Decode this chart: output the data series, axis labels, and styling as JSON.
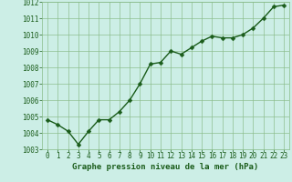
{
  "x": [
    0,
    1,
    2,
    3,
    4,
    5,
    6,
    7,
    8,
    9,
    10,
    11,
    12,
    13,
    14,
    15,
    16,
    17,
    18,
    19,
    20,
    21,
    22,
    23
  ],
  "y": [
    1004.8,
    1004.5,
    1004.1,
    1003.3,
    1004.1,
    1004.8,
    1004.8,
    1005.3,
    1006.0,
    1007.0,
    1008.2,
    1008.3,
    1009.0,
    1008.8,
    1009.2,
    1009.6,
    1009.9,
    1009.8,
    1009.8,
    1010.0,
    1010.4,
    1011.0,
    1011.7,
    1011.8
  ],
  "ylim": [
    1003,
    1012
  ],
  "yticks": [
    1003,
    1004,
    1005,
    1006,
    1007,
    1008,
    1009,
    1010,
    1011,
    1012
  ],
  "xticks": [
    0,
    1,
    2,
    3,
    4,
    5,
    6,
    7,
    8,
    9,
    10,
    11,
    12,
    13,
    14,
    15,
    16,
    17,
    18,
    19,
    20,
    21,
    22,
    23
  ],
  "line_color": "#1a5c1a",
  "marker_color": "#1a5c1a",
  "bg_color": "#cceee6",
  "grid_color": "#88bb88",
  "xlabel": "Graphe pression niveau de la mer (hPa)",
  "xlabel_color": "#1a5c1a",
  "tick_color": "#1a5c1a",
  "tick_fontsize": 5.5,
  "xlabel_fontsize": 6.5,
  "marker_size": 2.5,
  "line_width": 1.0
}
